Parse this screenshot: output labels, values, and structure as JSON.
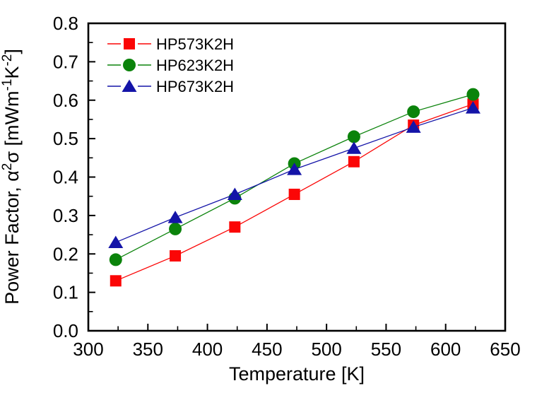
{
  "figure": {
    "background": "#ffffff",
    "frame_color": "#000000"
  },
  "chart_data": {
    "type": "line",
    "title": "",
    "xlabel": "Temperature [K]",
    "ylabel": "Power Factor, α²σ [mWm⁻¹K⁻²]",
    "ylabel_parts": [
      {
        "t": "Power Factor, ",
        "sup": false
      },
      {
        "t": "α",
        "sup": false
      },
      {
        "t": "2",
        "sup": true
      },
      {
        "t": "σ [mWm",
        "sup": false
      },
      {
        "t": "-1",
        "sup": true
      },
      {
        "t": "K",
        "sup": false
      },
      {
        "t": "-2",
        "sup": true
      },
      {
        "t": "]",
        "sup": false
      }
    ],
    "xlim": [
      300,
      650
    ],
    "ylim": [
      0.0,
      0.8
    ],
    "grid": false,
    "x_ticks": {
      "values": [
        300,
        350,
        400,
        450,
        500,
        550,
        600,
        650
      ],
      "labels": [
        "300",
        "350",
        "400",
        "450",
        "500",
        "550",
        "600",
        "650"
      ],
      "minor_step": 25
    },
    "y_ticks": {
      "values": [
        0.0,
        0.1,
        0.2,
        0.3,
        0.4,
        0.5,
        0.6,
        0.7,
        0.8
      ],
      "labels": [
        "0.0",
        "0.1",
        "0.2",
        "0.3",
        "0.4",
        "0.5",
        "0.6",
        "0.7",
        "0.8"
      ],
      "minor_step": 0.05
    },
    "legend": {
      "position": "top-left",
      "entries": [
        "HP573K2H",
        "HP623K2H",
        "HP673K2H"
      ]
    },
    "x": [
      323,
      373,
      423,
      473,
      523,
      573,
      623
    ],
    "series": [
      {
        "name": "HP573K2H",
        "marker": "square",
        "color": "#fb0606",
        "values": [
          0.13,
          0.195,
          0.27,
          0.355,
          0.44,
          0.535,
          0.59
        ]
      },
      {
        "name": "HP623K2H",
        "marker": "circle",
        "color": "#0b830b",
        "values": [
          0.185,
          0.265,
          0.345,
          0.435,
          0.505,
          0.57,
          0.615
        ]
      },
      {
        "name": "HP673K2H",
        "marker": "triangle",
        "color": "#1414a8",
        "values": [
          0.23,
          0.295,
          0.355,
          0.42,
          0.475,
          0.53,
          0.58
        ]
      }
    ]
  }
}
